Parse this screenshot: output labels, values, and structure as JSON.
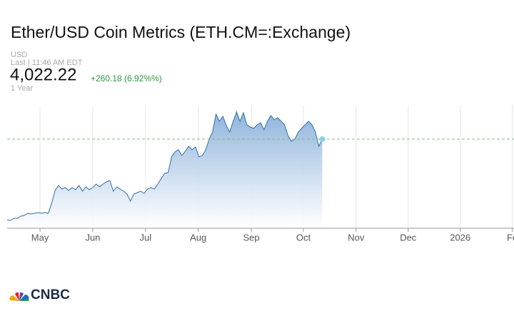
{
  "chart_data": {
    "type": "area",
    "title": "Ether/USD Coin Metrics (ETH.CM=:Exchange)",
    "currency": "USD",
    "last_time": "Last | 11:46 AM EDT",
    "last": {
      "value": 4022.22,
      "label": "4,022.22"
    },
    "change": "+260.18 (6.92%%)",
    "range": "1 Year",
    "logo": "CNBC",
    "series": [
      {
        "name": "ETH.CM=",
        "color": "#2e6fae",
        "values": [
          1839,
          1820,
          1877,
          1877,
          1935,
          1955,
          2013,
          1993,
          2013,
          2032,
          2013,
          2032,
          2013,
          2283,
          2631,
          2766,
          2670,
          2708,
          2631,
          2708,
          2650,
          2766,
          2612,
          2728,
          2650,
          2708,
          2805,
          2728,
          2805,
          2863,
          2901,
          2612,
          2728,
          2670,
          2612,
          2534,
          2341,
          2534,
          2573,
          2612,
          2554,
          2670,
          2708,
          2670,
          2805,
          2959,
          3095,
          3114,
          3539,
          3674,
          3732,
          3578,
          3694,
          3829,
          3732,
          3809,
          3539,
          3578,
          3732,
          4022,
          4215,
          4698,
          4505,
          4640,
          4389,
          4215,
          4505,
          4756,
          4505,
          4737,
          4408,
          4350,
          4312,
          4408,
          4466,
          4273,
          4505,
          4660,
          4544,
          4602,
          4505,
          4408,
          4119,
          3964,
          4022,
          4215,
          4312,
          4408,
          4505,
          4408,
          4215,
          3829,
          4022
        ]
      }
    ],
    "xlim": [
      0,
      148
    ],
    "xticks": [
      {
        "value": 9.6,
        "label": "May"
      },
      {
        "value": 25,
        "label": "Jun"
      },
      {
        "value": 40.4,
        "label": "Jul"
      },
      {
        "value": 55.8,
        "label": "Aug"
      },
      {
        "value": 71.3,
        "label": "Sep"
      },
      {
        "value": 86.5,
        "label": "Oct"
      },
      {
        "value": 101.9,
        "label": "Nov"
      },
      {
        "value": 117.1,
        "label": "Dec"
      },
      {
        "value": 132.3,
        "label": "2026"
      },
      {
        "value": 147.5,
        "label": "Fe"
      }
    ],
    "ylim": [
      1607,
      4930
    ],
    "grid": true
  }
}
